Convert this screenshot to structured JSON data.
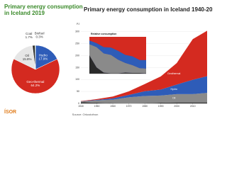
{
  "chart_data": [
    {
      "type": "pie",
      "title": "Primary energy consumption in Iceland 2019",
      "categories": [
        "Hydro",
        "Geo-thermal",
        "Oil",
        "Coal",
        "Biofuel"
      ],
      "values": [
        17.9,
        64.2,
        15.8,
        1.7,
        0.3
      ],
      "value_labels": [
        "17.9%",
        "64.2%",
        "15.8%",
        "1.7%",
        "0.3%"
      ],
      "colors": [
        "#2e5cb8",
        "#d42a20",
        "#e6e6e6",
        "#2a2a2a",
        "#8cc63f"
      ]
    },
    {
      "type": "area",
      "title": "Primary energy consumption in Iceland 1940-2019",
      "ylabel": "PJ",
      "x": [
        1940,
        1950,
        1960,
        1970,
        1980,
        1990,
        2000,
        2010,
        2019
      ],
      "xlim": [
        1940,
        2019
      ],
      "xticks": [
        1940,
        1950,
        1960,
        1970,
        1980,
        1990,
        2000,
        2010
      ],
      "ylim": [
        0,
        320
      ],
      "yticks": [
        0,
        50,
        100,
        150,
        200,
        250,
        300
      ],
      "grid": true,
      "series": [
        {
          "name": "Coal",
          "color": "#2a2a2a",
          "values": [
            5,
            3,
            1,
            0.5,
            1,
            3,
            4,
            4,
            4
          ]
        },
        {
          "name": "Oil",
          "color": "#8a8a8a",
          "values": [
            3,
            10,
            15,
            25,
            30,
            30,
            35,
            35,
            40
          ]
        },
        {
          "name": "Hydro",
          "color": "#2e5cb8",
          "values": [
            1,
            2,
            5,
            10,
            20,
            25,
            40,
            60,
            70
          ]
        },
        {
          "name": "Geothermal",
          "color": "#d42a20",
          "values": [
            1,
            3,
            8,
            15,
            30,
            55,
            90,
            170,
            190
          ]
        }
      ]
    },
    {
      "type": "area",
      "title": "Relative consumption",
      "x": [
        1940,
        1950,
        1960,
        1970,
        1980,
        1990,
        2000,
        2010,
        2019
      ],
      "xlim": [
        1940,
        2019
      ],
      "ylim": [
        0,
        100
      ],
      "series": [
        {
          "name": "Coal",
          "color": "#2a2a2a",
          "values": [
            50,
            17,
            3,
            1,
            1,
            3,
            2,
            2,
            1
          ]
        },
        {
          "name": "Oil",
          "color": "#8a8a8a",
          "values": [
            30,
            55,
            52,
            50,
            37,
            26,
            21,
            13,
            13
          ]
        },
        {
          "name": "Hydro",
          "color": "#2e5cb8",
          "values": [
            10,
            11,
            17,
            20,
            24,
            22,
            24,
            22,
            23
          ]
        },
        {
          "name": "Geothermal",
          "color": "#d42a20",
          "values": [
            10,
            17,
            28,
            29,
            38,
            49,
            53,
            63,
            63
          ]
        }
      ]
    }
  ],
  "footer": {
    "logo": "ÍSOR",
    "source": "Source: Orkustofnun"
  }
}
